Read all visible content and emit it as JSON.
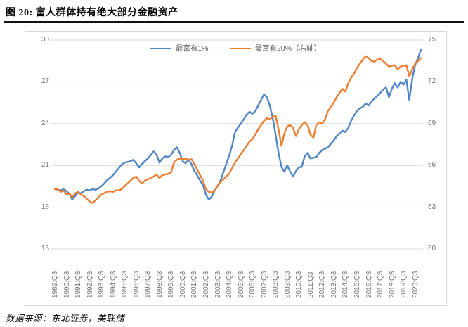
{
  "figure": {
    "title": "图 20: 富人群体持有绝大部分金融资产",
    "source": "数据来源：东北证券，美联储"
  },
  "legend": {
    "items": [
      {
        "label": "最富有1%",
        "color": "#4F86C6"
      },
      {
        "label": "最富有20%（右轴）",
        "color": "#ED7D31"
      }
    ]
  },
  "colors": {
    "grid": "#d9d9d9",
    "frame": "#d9d9d9",
    "axis_text": "#737373",
    "blue": "#4F86C6",
    "orange": "#ED7D31"
  },
  "chart_data": {
    "type": "line",
    "title": "富人群体持有绝大部分金融资产",
    "x_frequency": "quarterly",
    "x_start": "1989:Q3",
    "x_end": "2021:Q1",
    "x_tick_labels": [
      "1989:Q3",
      "1990:Q3",
      "1991:Q3",
      "1992:Q3",
      "1993:Q3",
      "1994:Q3",
      "1995:Q3",
      "1996:Q3",
      "1997:Q3",
      "1998:Q3",
      "1999:Q3",
      "2000:Q3",
      "2001:Q3",
      "2002:Q3",
      "2003:Q3",
      "2004:Q3",
      "2005:Q3",
      "2006:Q3",
      "2007:Q3",
      "2008:Q3",
      "2009:Q3",
      "2010:Q3",
      "2011:Q3",
      "2012:Q3",
      "2013:Q3",
      "2014:Q3",
      "2015:Q3",
      "2016:Q3",
      "2017:Q3",
      "2018:Q3",
      "2019:Q3",
      "2020:Q3"
    ],
    "left_axis": {
      "label": "",
      "min": 15,
      "max": 30,
      "ticks": [
        30,
        27,
        24,
        21,
        18,
        15
      ]
    },
    "right_axis": {
      "label": "",
      "min": 60,
      "max": 75,
      "ticks": [
        75,
        72,
        69,
        66,
        63,
        60
      ]
    },
    "grid": true,
    "legend_position": "top-center",
    "series": [
      {
        "name": "最富有1%",
        "axis": "left",
        "color": "#4F86C6",
        "values": [
          19.3,
          19.25,
          19.2,
          19.3,
          19.15,
          18.95,
          18.55,
          18.8,
          19.05,
          19.0,
          19.15,
          19.25,
          19.2,
          19.3,
          19.25,
          19.35,
          19.5,
          19.7,
          19.95,
          20.1,
          20.3,
          20.55,
          20.8,
          21.05,
          21.2,
          21.25,
          21.3,
          21.4,
          21.15,
          20.85,
          21.1,
          21.3,
          21.5,
          21.75,
          22.0,
          21.8,
          21.2,
          21.5,
          21.65,
          21.6,
          21.75,
          22.1,
          22.3,
          21.9,
          21.3,
          21.15,
          21.4,
          21.1,
          20.6,
          20.3,
          19.9,
          19.6,
          18.9,
          18.55,
          18.75,
          19.2,
          19.5,
          19.9,
          20.5,
          21.1,
          21.7,
          22.4,
          23.4,
          23.7,
          24.0,
          24.3,
          24.65,
          24.85,
          24.7,
          24.9,
          25.3,
          25.7,
          26.1,
          25.9,
          25.3,
          24.4,
          23.2,
          21.9,
          20.9,
          20.55,
          21.0,
          20.55,
          20.2,
          20.6,
          20.85,
          20.9,
          21.65,
          21.9,
          21.5,
          21.55,
          21.6,
          21.9,
          22.1,
          22.2,
          22.3,
          22.55,
          22.8,
          23.1,
          23.3,
          23.5,
          23.4,
          23.7,
          24.2,
          24.6,
          24.9,
          25.1,
          25.2,
          25.45,
          25.3,
          25.6,
          25.8,
          26.0,
          26.2,
          26.45,
          26.6,
          25.9,
          26.5,
          26.9,
          26.6,
          27.0,
          26.8,
          27.15,
          25.7,
          27.2,
          28.2,
          28.7,
          29.3
        ]
      },
      {
        "name": "最富有20%（右轴）",
        "axis": "right",
        "color": "#ED7D31",
        "values": [
          64.3,
          64.3,
          64.1,
          64.2,
          63.9,
          64.0,
          63.7,
          64.0,
          64.1,
          63.9,
          63.8,
          63.6,
          63.4,
          63.3,
          63.5,
          63.7,
          63.9,
          64.0,
          64.1,
          64.15,
          64.1,
          64.2,
          64.2,
          64.3,
          64.5,
          64.7,
          64.9,
          65.1,
          65.2,
          64.9,
          64.7,
          64.9,
          65.0,
          65.1,
          65.2,
          65.35,
          65.1,
          65.3,
          65.35,
          65.4,
          65.5,
          66.2,
          66.4,
          66.5,
          66.45,
          66.5,
          66.4,
          66.45,
          66.1,
          65.7,
          65.3,
          64.9,
          64.3,
          64.1,
          64.05,
          64.2,
          64.5,
          64.8,
          65.0,
          65.2,
          65.4,
          65.8,
          66.2,
          66.5,
          66.8,
          67.1,
          67.4,
          67.7,
          67.9,
          68.2,
          68.6,
          68.9,
          69.2,
          69.4,
          69.3,
          69.5,
          69.55,
          68.6,
          67.4,
          68.3,
          68.8,
          68.9,
          68.7,
          68.1,
          68.6,
          68.9,
          69.1,
          68.9,
          68.2,
          68.0,
          68.9,
          69.1,
          69.0,
          69.3,
          69.9,
          70.2,
          70.5,
          70.9,
          71.2,
          71.5,
          71.3,
          71.9,
          72.3,
          72.6,
          73.0,
          73.3,
          73.6,
          73.85,
          73.7,
          73.5,
          73.45,
          73.6,
          73.65,
          73.5,
          73.3,
          73.1,
          73.15,
          73.2,
          72.9,
          73.1,
          73.15,
          73.2,
          72.4,
          72.9,
          73.3,
          73.5,
          73.7
        ]
      }
    ]
  }
}
